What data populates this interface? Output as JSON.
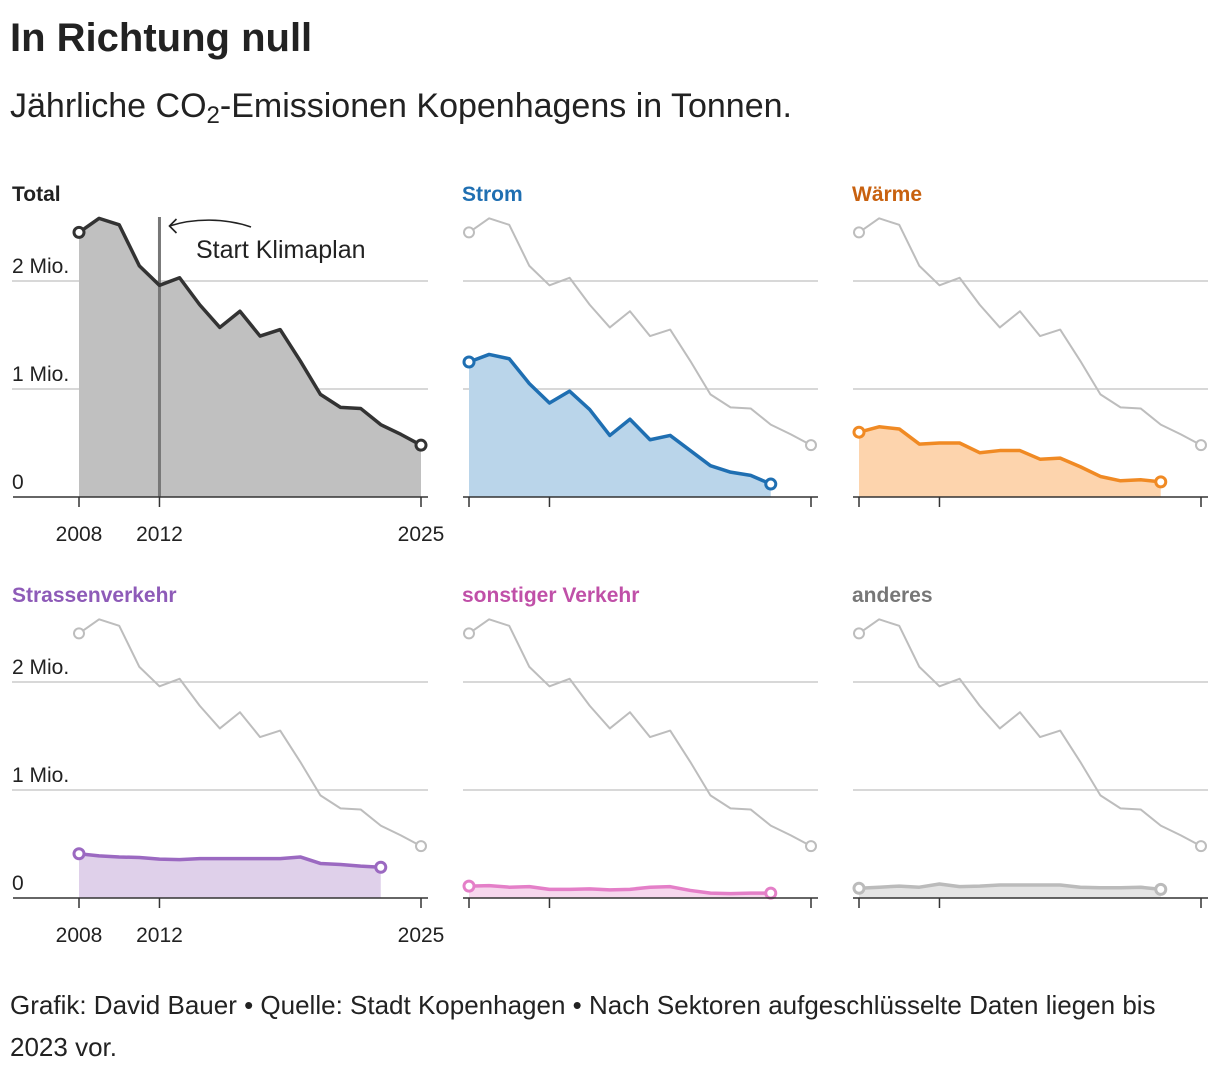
{
  "title": "In Richtung null",
  "subtitle": {
    "prefix": "Jährliche CO",
    "sub": "2",
    "suffix": "-Emissionen Kopenhagens in Tonnen."
  },
  "footer": "Grafik: David Bauer • Quelle: Stadt Kopenhagen • Nach Sektoren aufgeschlüsselte Daten liegen bis 2023 vor.",
  "chart_data": {
    "type": "area",
    "layout": "small-multiples 3x2",
    "unit": "Tonnen CO2",
    "ylim": [
      0,
      2700000
    ],
    "xlim": [
      2008,
      2025
    ],
    "y_ticks": [
      {
        "value": 0,
        "label": "0"
      },
      {
        "value": 1000000,
        "label": "1 Mio."
      },
      {
        "value": 2000000,
        "label": "2 Mio."
      }
    ],
    "x_ticks": [
      {
        "value": 2008,
        "label": "2008"
      },
      {
        "value": 2012,
        "label": "2012"
      },
      {
        "value": 2025,
        "label": "2025"
      }
    ],
    "annotation": {
      "label": "Start Klimaplan",
      "year": 2012,
      "panel": "Total"
    },
    "reference_series": "Total",
    "panels": [
      {
        "name": "Total",
        "color": "#333333",
        "fill": "#c0c0c0",
        "x": [
          2008,
          2009,
          2010,
          2011,
          2012,
          2013,
          2014,
          2015,
          2016,
          2017,
          2018,
          2019,
          2020,
          2021,
          2022,
          2023,
          2024,
          2025
        ],
        "values": [
          2450000,
          2580000,
          2520000,
          2140000,
          1960000,
          2030000,
          1780000,
          1570000,
          1720000,
          1490000,
          1550000,
          1260000,
          950000,
          830000,
          820000,
          670000,
          580000,
          480000
        ]
      },
      {
        "name": "Strom",
        "color": "#1f6fb2",
        "fill": "#bad5ea",
        "x": [
          2008,
          2009,
          2010,
          2011,
          2012,
          2013,
          2014,
          2015,
          2016,
          2017,
          2018,
          2019,
          2020,
          2021,
          2022,
          2023
        ],
        "values": [
          1250000,
          1320000,
          1280000,
          1050000,
          870000,
          980000,
          810000,
          570000,
          720000,
          530000,
          570000,
          430000,
          290000,
          230000,
          200000,
          120000
        ]
      },
      {
        "name": "Wärme",
        "color": "#f08a24",
        "fill": "#fdd4ad",
        "x": [
          2008,
          2009,
          2010,
          2011,
          2012,
          2013,
          2014,
          2015,
          2016,
          2017,
          2018,
          2019,
          2020,
          2021,
          2022,
          2023
        ],
        "values": [
          600000,
          650000,
          630000,
          490000,
          500000,
          500000,
          410000,
          430000,
          430000,
          350000,
          360000,
          280000,
          190000,
          150000,
          160000,
          140000
        ]
      },
      {
        "name": "Strassenverkehr",
        "color": "#9b69c1",
        "fill": "#dfd0ea",
        "x": [
          2008,
          2009,
          2010,
          2011,
          2012,
          2013,
          2014,
          2015,
          2016,
          2017,
          2018,
          2019,
          2020,
          2021,
          2022,
          2023
        ],
        "values": [
          410000,
          390000,
          380000,
          375000,
          360000,
          355000,
          365000,
          365000,
          365000,
          365000,
          365000,
          380000,
          320000,
          310000,
          295000,
          285000
        ]
      },
      {
        "name": "sonstiger Verkehr",
        "color": "#e47fc8",
        "fill": "#f6d7ed",
        "x": [
          2008,
          2009,
          2010,
          2011,
          2012,
          2013,
          2014,
          2015,
          2016,
          2017,
          2018,
          2019,
          2020,
          2021,
          2022,
          2023
        ],
        "values": [
          110000,
          115000,
          100000,
          105000,
          80000,
          80000,
          85000,
          75000,
          80000,
          100000,
          105000,
          70000,
          45000,
          40000,
          45000,
          45000
        ]
      },
      {
        "name": "anderes",
        "color": "#bbbbbb",
        "fill": "#e4e4e4",
        "x": [
          2008,
          2009,
          2010,
          2011,
          2012,
          2013,
          2014,
          2015,
          2016,
          2017,
          2018,
          2019,
          2020,
          2021,
          2022,
          2023
        ],
        "values": [
          90000,
          100000,
          110000,
          100000,
          130000,
          105000,
          110000,
          120000,
          120000,
          120000,
          120000,
          100000,
          95000,
          95000,
          100000,
          80000
        ]
      }
    ],
    "title_colors": {
      "Total": "#222222",
      "Strom": "#1f6fb2",
      "Wärme": "#c8610f",
      "Strassenverkehr": "#8e5bb8",
      "sonstiger Verkehr": "#c050a8",
      "anderes": "#777777"
    }
  }
}
